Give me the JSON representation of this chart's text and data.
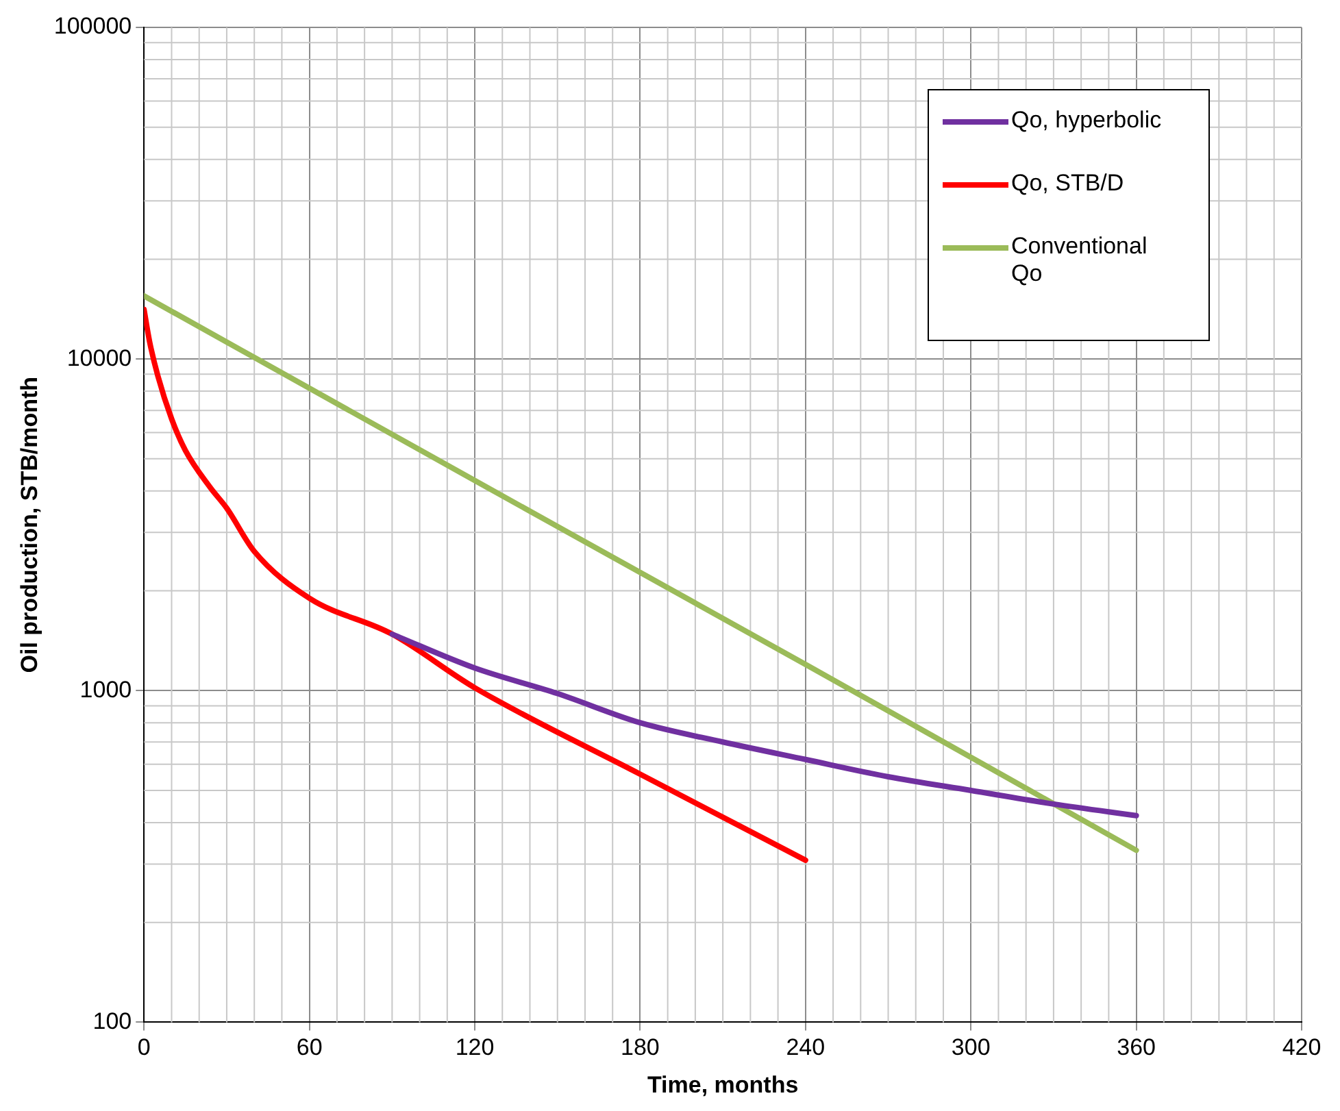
{
  "chart_data": {
    "type": "line",
    "xlabel": "Time, months",
    "ylabel": "Oil production, STB/month",
    "log": "y",
    "grid": true,
    "legend": "top right",
    "xlim": [
      0,
      420
    ],
    "xticks": [
      0,
      60,
      120,
      180,
      240,
      300,
      360,
      420
    ],
    "ylim": [
      100,
      100000
    ],
    "yticks": [
      100,
      1000,
      10000,
      100000
    ],
    "marker": "none",
    "line_style": "solid",
    "series": [
      {
        "name": "Qo, hyperbolic",
        "color": "#7030a0",
        "x": [
          90,
          120,
          150,
          180,
          210,
          240,
          270,
          300,
          330,
          360
        ],
        "values": [
          1480,
          1170,
          980,
          800,
          700,
          620,
          550,
          500,
          455,
          420
        ]
      },
      {
        "name": "Qo, STB/D",
        "color": "#ff0000",
        "x": [
          0,
          2,
          5,
          10,
          15,
          24,
          30,
          40,
          60,
          90,
          120,
          180,
          240
        ],
        "values": [
          14100,
          11300,
          8900,
          6600,
          5300,
          4100,
          3550,
          2630,
          1900,
          1480,
          1020,
          560,
          308
        ]
      },
      {
        "name": "Conventional Qo",
        "color": "#9bbb59",
        "x": [
          0,
          120,
          240,
          360
        ],
        "values": [
          15500,
          4300,
          1200,
          330
        ]
      }
    ]
  }
}
